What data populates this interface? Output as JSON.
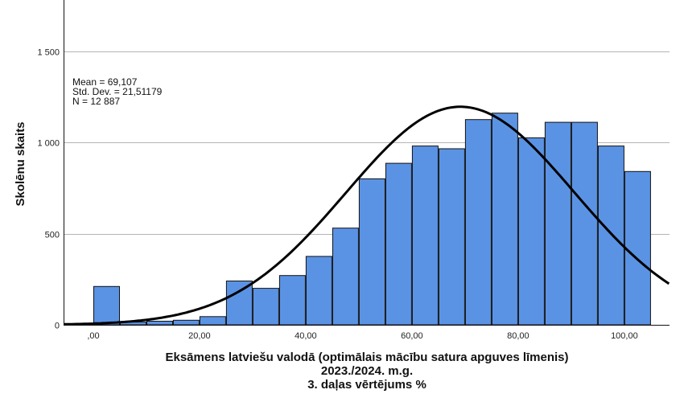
{
  "chart_data": {
    "type": "bar",
    "xlabel_lines": [
      "Eksāmens latviešu valodā (optimālais mācību satura apguves līmenis)",
      "2023./2024. m.g.",
      "3. daļas vērtējums %"
    ],
    "ylabel": "Skolēnu skaits",
    "stats": {
      "mean": "Mean = 69,107",
      "std": "Std. Dev. = 21,51179",
      "n": "N = 12 887"
    },
    "xlim": [
      -5.6,
      108.5
    ],
    "ylim": [
      0,
      1780
    ],
    "x_ticks": [
      {
        "value": 0,
        "label": ",00"
      },
      {
        "value": 20,
        "label": "20,00"
      },
      {
        "value": 40,
        "label": "40,00"
      },
      {
        "value": 60,
        "label": "60,00"
      },
      {
        "value": 80,
        "label": "80,00"
      },
      {
        "value": 100,
        "label": "100,00"
      }
    ],
    "y_ticks": [
      {
        "value": 0,
        "label": "0"
      },
      {
        "value": 500,
        "label": "500"
      },
      {
        "value": 1000,
        "label": "1 000"
      },
      {
        "value": 1500,
        "label": "1 500"
      }
    ],
    "bin_width": 5,
    "bins": [
      {
        "start": 0,
        "value": 210
      },
      {
        "start": 5,
        "value": 15
      },
      {
        "start": 10,
        "value": 20
      },
      {
        "start": 15,
        "value": 25
      },
      {
        "start": 20,
        "value": 45
      },
      {
        "start": 25,
        "value": 240
      },
      {
        "start": 30,
        "value": 200
      },
      {
        "start": 35,
        "value": 270
      },
      {
        "start": 40,
        "value": 375
      },
      {
        "start": 45,
        "value": 530
      },
      {
        "start": 50,
        "value": 800
      },
      {
        "start": 55,
        "value": 885
      },
      {
        "start": 60,
        "value": 980
      },
      {
        "start": 65,
        "value": 965
      },
      {
        "start": 70,
        "value": 1125
      },
      {
        "start": 75,
        "value": 1160
      },
      {
        "start": 80,
        "value": 1025
      },
      {
        "start": 85,
        "value": 1110
      },
      {
        "start": 90,
        "value": 1110
      },
      {
        "start": 95,
        "value": 980
      },
      {
        "start": 100,
        "value": 840
      }
    ],
    "normal_curve": {
      "mean": 69.107,
      "std": 21.51179,
      "n": 12887
    },
    "grid": "horizontal",
    "colors": {
      "bar_fill": "#5b93e4",
      "bar_stroke": "#111111",
      "curve": "#000000",
      "grid": "#b4b4b4"
    }
  }
}
